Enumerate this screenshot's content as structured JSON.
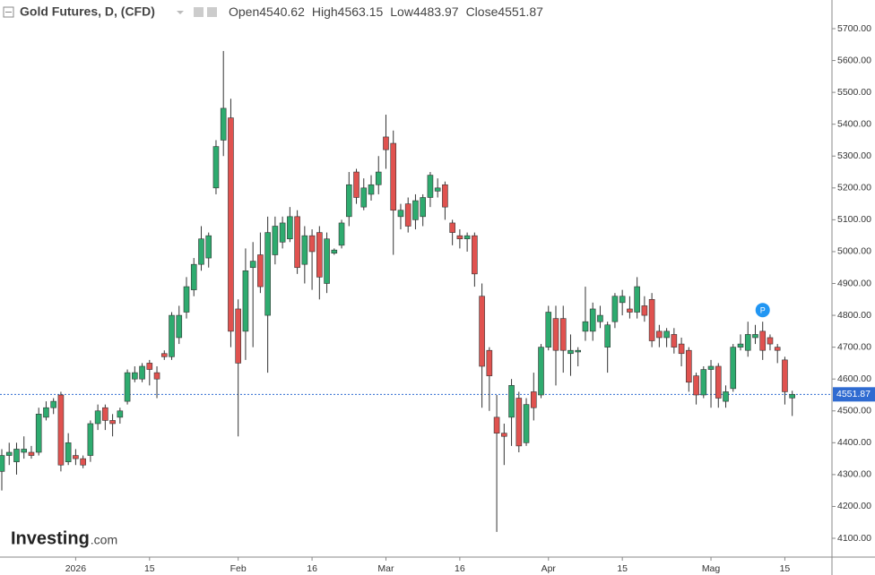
{
  "chart_data": {
    "type": "candlestick",
    "title": "Gold Futures, D, (CFD)",
    "ohlc_labels": [
      "Open",
      "High",
      "Low",
      "Close"
    ],
    "annotation": "P",
    "logo": [
      "Investing",
      ".com"
    ],
    "up_color": "#2eab6f",
    "down_color": "#e0524f",
    "last_price_color": "#2f6bd1",
    "categories": [
      null,
      null,
      null,
      null,
      null,
      null,
      null,
      null,
      null,
      null,
      "2026",
      null,
      null,
      null,
      null,
      null,
      null,
      null,
      null,
      null,
      "15",
      null,
      null,
      null,
      null,
      null,
      null,
      null,
      null,
      null,
      null,
      null,
      "Feb",
      null,
      null,
      null,
      null,
      null,
      null,
      null,
      null,
      null,
      "16",
      null,
      null,
      null,
      null,
      null,
      null,
      null,
      null,
      null,
      "Mar",
      null,
      null,
      null,
      null,
      null,
      null,
      null,
      null,
      null,
      "16",
      null,
      null,
      null,
      null,
      null,
      null,
      null,
      null,
      null,
      null,
      null,
      "Apr",
      null,
      null,
      null,
      null,
      null,
      null,
      null,
      null,
      null,
      "15",
      null,
      null,
      null,
      null,
      null,
      null,
      null,
      null,
      null,
      null,
      null,
      "Mag",
      null,
      null,
      null,
      null,
      null,
      null,
      null,
      null,
      null,
      "15",
      null
    ],
    "open": [
      4310,
      4360,
      4340,
      4370,
      4370,
      4370,
      4480,
      4510,
      4550,
      4340,
      4360,
      4350,
      4360,
      4460,
      4510,
      4470,
      4480,
      4530,
      4600,
      4600,
      4650,
      4620,
      4680,
      4670,
      4730,
      4810,
      4880,
      4960,
      4980,
      5200,
      5350,
      5420,
      4820,
      4750,
      4950,
      4990,
      4800,
      4990,
      5030,
      5040,
      5110,
      4960,
      5050,
      5060,
      4900,
      4995,
      5020,
      5110,
      5250,
      5140,
      5180,
      5210,
      5360,
      5340,
      5110,
      5150,
      5100,
      5110,
      5170,
      5190,
      5210,
      5090,
      5050,
      5040,
      5050,
      4860,
      4690,
      4480,
      4430,
      4480,
      4540,
      4400,
      4560,
      4550,
      4700,
      4790,
      4790,
      4680,
      4685,
      4750,
      4750,
      4780,
      4700,
      4780,
      4840,
      4820,
      4810,
      4830,
      4850,
      4750,
      4730,
      4740,
      4710,
      4690,
      4610,
      4550,
      4630,
      4640,
      4530,
      4570,
      4700,
      4690,
      4730,
      4750,
      4730,
      4700,
      4660,
      4540.62
    ],
    "high": [
      4380,
      4400,
      4400,
      4420,
      4390,
      4510,
      4530,
      4540,
      4560,
      4430,
      4380,
      4360,
      4470,
      4520,
      4520,
      4490,
      4510,
      4630,
      4640,
      4650,
      4660,
      4640,
      4690,
      4810,
      4830,
      4920,
      4980,
      5080,
      5060,
      5350,
      5630,
      5480,
      4850,
      5010,
      5030,
      5060,
      5110,
      5110,
      5110,
      5140,
      5130,
      5080,
      5070,
      5080,
      5060,
      5010,
      5100,
      5250,
      5260,
      5230,
      5240,
      5300,
      5430,
      5380,
      5150,
      5170,
      5180,
      5180,
      5250,
      5230,
      5220,
      5100,
      5070,
      5060,
      5060,
      4900,
      4700,
      4550,
      4460,
      4600,
      4560,
      4540,
      4620,
      4710,
      4830,
      4830,
      4830,
      4740,
      4700,
      4890,
      4840,
      4830,
      4780,
      4870,
      4880,
      4860,
      4920,
      4860,
      4870,
      4770,
      4760,
      4760,
      4730,
      4700,
      4620,
      4640,
      4660,
      4650,
      4580,
      4710,
      4740,
      4780,
      4770,
      4780,
      4740,
      4710,
      4670,
      4563.15
    ],
    "low": [
      4250,
      4330,
      4300,
      4350,
      4350,
      4360,
      4470,
      4490,
      4310,
      4330,
      4330,
      4320,
      4340,
      4440,
      4440,
      4420,
      4460,
      4520,
      4590,
      4590,
      4580,
      4540,
      4660,
      4660,
      4710,
      4790,
      4860,
      4940,
      4950,
      5180,
      5300,
      4700,
      4420,
      4660,
      4700,
      4870,
      4620,
      4960,
      5010,
      5030,
      4930,
      4900,
      4880,
      4850,
      4870,
      4990,
      5010,
      5080,
      5150,
      5130,
      5160,
      5180,
      5260,
      4990,
      5070,
      5060,
      5070,
      5080,
      5140,
      5170,
      5100,
      5020,
      5010,
      5000,
      4890,
      4510,
      4500,
      4120,
      4330,
      4390,
      4370,
      4390,
      4470,
      4540,
      4690,
      4580,
      4620,
      4610,
      4640,
      4720,
      4720,
      4760,
      4620,
      4760,
      4800,
      4790,
      4790,
      4780,
      4700,
      4700,
      4700,
      4680,
      4640,
      4560,
      4520,
      4540,
      4510,
      4510,
      4510,
      4560,
      4690,
      4670,
      4710,
      4660,
      4690,
      4650,
      4520,
      4483.97
    ],
    "close": [
      4360,
      4370,
      4380,
      4380,
      4360,
      4490,
      4510,
      4530,
      4330,
      4400,
      4350,
      4330,
      4460,
      4500,
      4470,
      4460,
      4500,
      4620,
      4620,
      4640,
      4630,
      4600,
      4670,
      4800,
      4800,
      4890,
      4960,
      5040,
      5050,
      5330,
      5450,
      4750,
      4650,
      4940,
      4970,
      4890,
      5060,
      5080,
      5090,
      5110,
      4950,
      5050,
      5000,
      4920,
      5040,
      5005,
      5090,
      5210,
      5170,
      5200,
      5210,
      5250,
      5320,
      5130,
      5130,
      5080,
      5160,
      5170,
      5240,
      5200,
      5140,
      5060,
      5040,
      5050,
      4930,
      4640,
      4610,
      4430,
      4420,
      4580,
      4390,
      4520,
      4510,
      4700,
      4810,
      4690,
      4690,
      4690,
      4690,
      4780,
      4820,
      4800,
      4770,
      4860,
      4860,
      4810,
      4890,
      4800,
      4720,
      4730,
      4750,
      4700,
      4680,
      4590,
      4550,
      4630,
      4640,
      4540,
      4560,
      4700,
      4710,
      4740,
      4740,
      4690,
      4710,
      4690,
      4560,
      4551.87
    ],
    "annotation_index": 103,
    "ylim": [
      4041,
      5790
    ],
    "yticks": [
      {
        "value": 4100,
        "label": "4100.00"
      },
      {
        "value": 4200,
        "label": "4200.00"
      },
      {
        "value": 4300,
        "label": "4300.00"
      },
      {
        "value": 4400,
        "label": "4400.00"
      },
      {
        "value": 4500,
        "label": "4500.00"
      },
      {
        "value": 4600,
        "label": "4600.00"
      },
      {
        "value": 4700,
        "label": "4700.00"
      },
      {
        "value": 4800,
        "label": "4800.00"
      },
      {
        "value": 4900,
        "label": "4900.00"
      },
      {
        "value": 5000,
        "label": "5000.00"
      },
      {
        "value": 5100,
        "label": "5100.00"
      },
      {
        "value": 5200,
        "label": "5200.00"
      },
      {
        "value": 5300,
        "label": "5300.00"
      },
      {
        "value": 5400,
        "label": "5400.00"
      },
      {
        "value": 5500,
        "label": "5500.00"
      },
      {
        "value": 5600,
        "label": "5600.00"
      },
      {
        "value": 5700,
        "label": "5700.00"
      }
    ]
  }
}
